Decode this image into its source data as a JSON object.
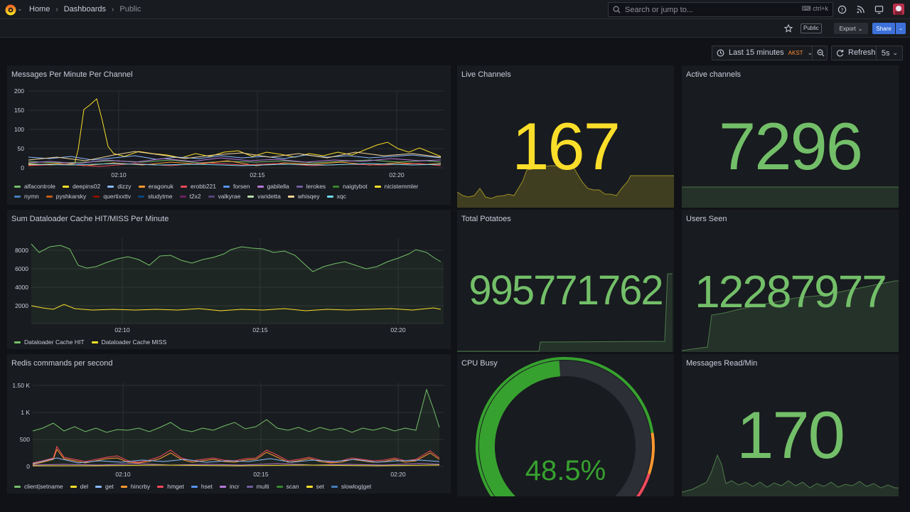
{
  "topbar": {
    "crumbs": [
      "Home",
      "Dashboards",
      "Public"
    ],
    "search_placeholder": "Search or jump to...",
    "search_shortcut": "ctrl+k"
  },
  "subbar": {
    "public_badge": "Public",
    "export_label": "Export",
    "share_label": "Share"
  },
  "controls": {
    "time_range": "Last 15 minutes",
    "timezone": "AKST",
    "refresh_label": "Refresh",
    "refresh_interval": "5s"
  },
  "colors": {
    "green": "#73bf69",
    "yellow": "#fade2a",
    "orange": "#ff9830",
    "red": "#f2495c",
    "blue": "#5794f2",
    "purple": "#b877d9"
  },
  "panels": {
    "messages": {
      "title": "Messages Per Minute Per Channel",
      "yticks": [
        "200",
        "150",
        "100",
        "50",
        "0"
      ],
      "xticks": [
        "02:10",
        "02:15",
        "02:20"
      ],
      "legend": [
        {
          "name": "alfacontrole",
          "color": "#73bf69"
        },
        {
          "name": "deepins02",
          "color": "#fade2a"
        },
        {
          "name": "dizzy",
          "color": "#8ab8ff"
        },
        {
          "name": "eragonuk",
          "color": "#ff9830"
        },
        {
          "name": "erobb221",
          "color": "#f2495c"
        },
        {
          "name": "forsen",
          "color": "#5794f2"
        },
        {
          "name": "gabilella",
          "color": "#b877d9"
        },
        {
          "name": "lerokes",
          "color": "#705da0"
        },
        {
          "name": "naigtybot",
          "color": "#37872d"
        },
        {
          "name": "nicistemmler",
          "color": "#fade2a"
        },
        {
          "name": "nymn",
          "color": "#447ebc"
        },
        {
          "name": "pyshkarsky",
          "color": "#c15c17"
        },
        {
          "name": "quertixxttv",
          "color": "#890f02"
        },
        {
          "name": "studytme",
          "color": "#0a437c"
        },
        {
          "name": "t2x2",
          "color": "#6d1f62"
        },
        {
          "name": "valkyrae",
          "color": "#584477"
        },
        {
          "name": "varidetta",
          "color": "#b7dbab"
        },
        {
          "name": "whisqey",
          "color": "#f4d598"
        },
        {
          "name": "xqc",
          "color": "#70dbed"
        }
      ]
    },
    "dataloader": {
      "title": "Sum Dataloader Cache HIT/MISS Per Minute",
      "yticks": [
        "8000",
        "6000",
        "4000",
        "2000"
      ],
      "xticks": [
        "02:10",
        "02:15",
        "02:20"
      ],
      "legend": [
        {
          "name": "Dataloader Cache HIT",
          "color": "#73bf69"
        },
        {
          "name": "Dataloader Cache MISS",
          "color": "#fade2a"
        }
      ]
    },
    "redis": {
      "title": "Redis commands per second",
      "yticks": [
        "1.50 K",
        "1 K",
        "500",
        "0"
      ],
      "xticks": [
        "02:10",
        "02:15",
        "02:20"
      ],
      "legend": [
        {
          "name": "client|setname",
          "color": "#73bf69"
        },
        {
          "name": "del",
          "color": "#fade2a"
        },
        {
          "name": "get",
          "color": "#8ab8ff"
        },
        {
          "name": "hincrby",
          "color": "#ff9830"
        },
        {
          "name": "hmget",
          "color": "#f2495c"
        },
        {
          "name": "hset",
          "color": "#5794f2"
        },
        {
          "name": "incr",
          "color": "#b877d9"
        },
        {
          "name": "multi",
          "color": "#705da0"
        },
        {
          "name": "scan",
          "color": "#37872d"
        },
        {
          "name": "set",
          "color": "#fade2a"
        },
        {
          "name": "slowlog|get",
          "color": "#447ebc"
        }
      ]
    },
    "live_channels": {
      "title": "Live Channels",
      "value": "167"
    },
    "active_channels": {
      "title": "Active channels",
      "value": "7296"
    },
    "total_potatoes": {
      "title": "Total Potatoes",
      "value": "995771762"
    },
    "users_seen": {
      "title": "Users Seen",
      "value": "12287977"
    },
    "cpu_busy": {
      "title": "CPU Busy",
      "value": "48.5%",
      "fraction": 0.485
    },
    "messages_read": {
      "title": "Messages Read/Min",
      "value": "170"
    }
  }
}
